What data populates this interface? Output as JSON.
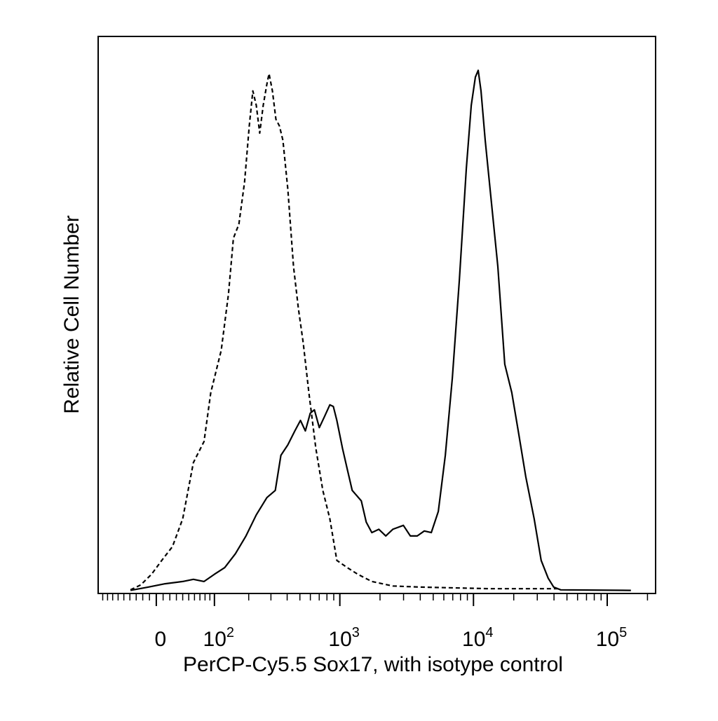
{
  "chart_data": {
    "type": "line",
    "xlabel": "PerCP-Cy5.5 Sox17, with isotype control",
    "ylabel": "Relative Cell Number",
    "xscale": "biexponential",
    "xlim": [
      -100,
      230000
    ],
    "ylim": [
      0,
      100
    ],
    "xticks": [
      {
        "value": 0,
        "label": "0"
      },
      {
        "value": 100,
        "label": "10",
        "exponent": "2"
      },
      {
        "value": 1000,
        "label": "10",
        "exponent": "3"
      },
      {
        "value": 10000,
        "label": "10",
        "exponent": "4"
      },
      {
        "value": 100000,
        "label": "10",
        "exponent": "5"
      }
    ],
    "xticks_minor": [
      -90,
      -80,
      -70,
      -60,
      -50,
      -40,
      -30,
      -20,
      -10,
      10,
      20,
      30,
      40,
      50,
      60,
      70,
      80,
      90,
      200,
      300,
      400,
      500,
      600,
      700,
      800,
      900,
      2000,
      3000,
      4000,
      5000,
      6000,
      7000,
      8000,
      9000,
      20000,
      30000,
      40000,
      50000,
      60000,
      70000,
      80000,
      90000,
      200000
    ],
    "series": [
      {
        "color": "#000000",
        "style": "dashed",
        "x": [
          -39,
          -23,
          -7,
          8,
          24,
          40,
          58,
          78,
          92,
          116,
          135,
          149,
          166,
          185,
          202,
          216,
          230,
          245,
          261,
          279,
          290,
          308,
          328,
          349,
          371,
          405,
          447,
          487,
          530,
          585,
          660,
          745,
          841,
          950,
          1138,
          1364,
          1737,
          2491,
          4036,
          13480,
          44930
        ],
        "values": [
          0.4,
          1.3,
          3.2,
          5.7,
          8.2,
          13.2,
          23.3,
          27.1,
          35.9,
          43.5,
          53.6,
          63.7,
          66.2,
          73.8,
          83.9,
          90.2,
          87.6,
          82.6,
          87.6,
          91.4,
          93.3,
          90.2,
          85.1,
          83.9,
          81.3,
          72.5,
          58.6,
          51.1,
          44.8,
          35.9,
          25.9,
          18.3,
          13.2,
          5.7,
          4.4,
          3.2,
          1.9,
          1.1,
          0.9,
          0.6,
          0.6
        ]
      },
      {
        "color": "#000000",
        "style": "solid",
        "x": [
          -39,
          -12,
          13,
          40,
          58,
          78,
          100,
          125,
          155,
          190,
          230,
          279,
          324,
          358,
          405,
          458,
          505,
          550,
          599,
          644,
          701,
          764,
          841,
          894,
          950,
          1046,
          1138,
          1238,
          1449,
          1577,
          1737,
          1959,
          2210,
          2491,
          2990,
          3370,
          3800,
          4285,
          4835,
          5456,
          6155,
          6944,
          7836,
          8840,
          9625,
          10340,
          10850,
          11380,
          12240,
          13480,
          15210,
          17150,
          19340,
          21810,
          24600,
          28440,
          32080,
          36180,
          39820,
          44930,
          150450
        ],
        "values": [
          0.3,
          0.9,
          1.5,
          1.9,
          2.3,
          1.9,
          3.2,
          4.4,
          6.9,
          10.1,
          13.9,
          17.0,
          18.3,
          24.6,
          26.5,
          29.0,
          30.9,
          29.0,
          32.2,
          32.8,
          29.6,
          31.5,
          33.7,
          33.4,
          30.9,
          25.9,
          22.1,
          18.3,
          16.4,
          12.6,
          10.7,
          11.3,
          10.1,
          11.3,
          12.0,
          10.1,
          10.1,
          11.0,
          10.7,
          14.5,
          24.6,
          38.5,
          56.1,
          76.3,
          87.6,
          92.7,
          93.9,
          90.2,
          81.3,
          71.2,
          58.6,
          41.0,
          35.9,
          28.4,
          20.8,
          13.2,
          5.7,
          2.5,
          0.9,
          0.4,
          0.3
        ]
      }
    ]
  }
}
